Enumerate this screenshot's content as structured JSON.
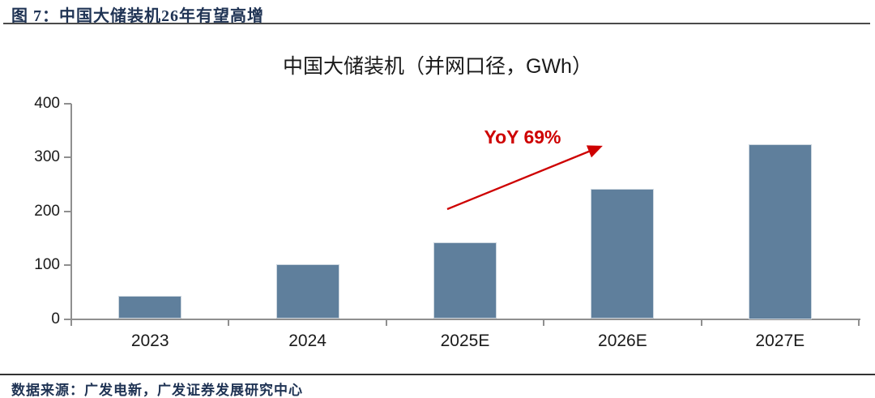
{
  "header": {
    "figure_label": "图 7：中国大储装机26年有望高增"
  },
  "footer": {
    "source": "数据来源：广发电新，广发证券发展研究中心"
  },
  "chart_data": {
    "type": "bar",
    "title": "中国大储装机（并网口径，GWh）",
    "categories": [
      "2023",
      "2024",
      "2025E",
      "2026E",
      "2027E"
    ],
    "values": [
      43,
      102,
      143,
      242,
      325
    ],
    "xlabel": "",
    "ylabel": "",
    "ylim": [
      0,
      400
    ],
    "yticks": [
      0,
      100,
      200,
      300,
      400
    ],
    "grid": false,
    "legend": "none",
    "bar_color": "#5f7f9c",
    "annotation": {
      "label": "YoY 69%",
      "color": "#ce0000",
      "from_category": "2025E",
      "to_category": "2026E"
    }
  }
}
